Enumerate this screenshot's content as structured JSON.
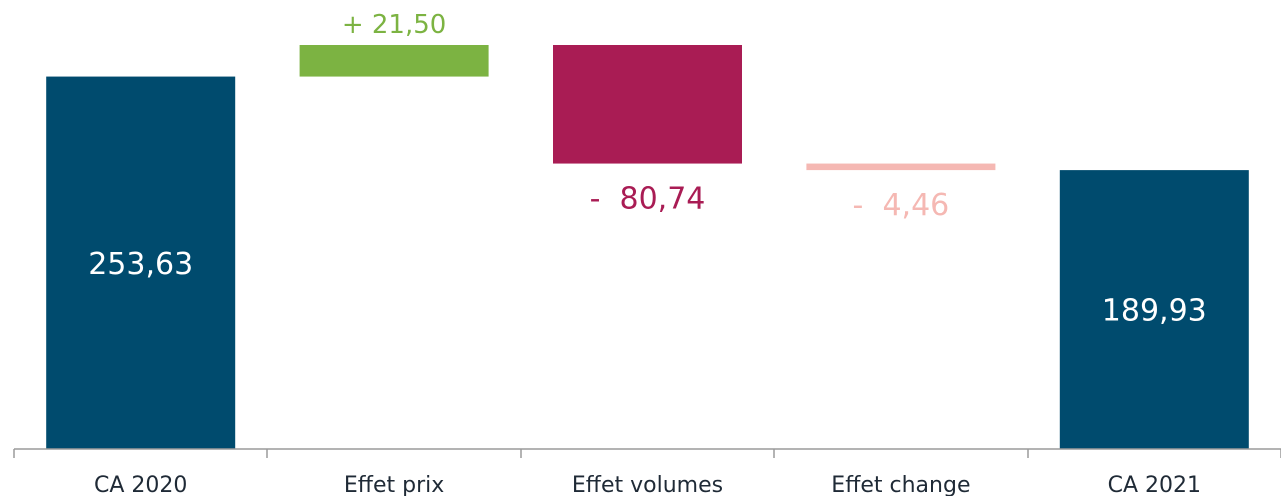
{
  "chart_data": {
    "type": "waterfall",
    "categories": [
      "CA 2020",
      "Effet prix",
      "Effet volumes",
      "Effet change",
      "CA 2021"
    ],
    "values": [
      253.63,
      21.5,
      -80.74,
      -4.46,
      189.93
    ],
    "kinds": [
      "total",
      "delta",
      "delta",
      "delta",
      "total"
    ],
    "data_labels": [
      "253,63",
      "+ 21,50",
      "-  80,74",
      "-  4,46",
      "189,93"
    ],
    "colors": {
      "total": "#004b6e",
      "price": "#7cb342",
      "volumes": "#a91c54",
      "change": "#f5b8b3",
      "axis": "#9a9a9a"
    },
    "bar_colors": [
      "#004b6e",
      "#7cb342",
      "#a91c54",
      "#f5b8b3",
      "#004b6e"
    ],
    "label_colors": [
      "#ffffff",
      "#7cb342",
      "#a91c54",
      "#f5b8b3",
      "#ffffff"
    ],
    "label_positions": [
      "inside",
      "above",
      "below",
      "below",
      "inside"
    ],
    "ylim": [
      0,
      275.13
    ],
    "grid": false,
    "legend": "none"
  }
}
